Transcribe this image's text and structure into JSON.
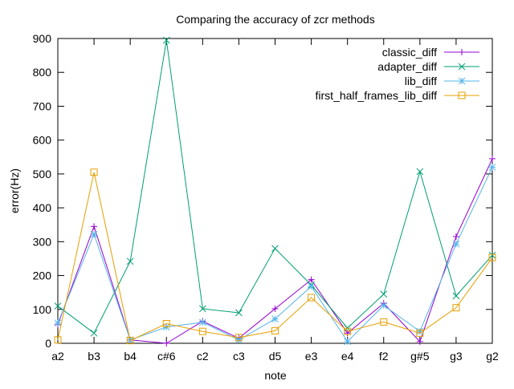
{
  "chart_data": {
    "type": "line",
    "title": "Comparing the accuracy of zcr methods",
    "xlabel": "note",
    "ylabel": "error(Hz)",
    "categories": [
      "a2",
      "b3",
      "b4",
      "c#6",
      "c2",
      "c3",
      "d5",
      "e3",
      "e4",
      "f2",
      "g#5",
      "g3",
      "g2"
    ],
    "ylim": [
      0,
      900
    ],
    "yticks": [
      0,
      100,
      200,
      300,
      400,
      500,
      600,
      700,
      800,
      900
    ],
    "grid": false,
    "legend_position": "top-right",
    "series": [
      {
        "name": "classic_diff",
        "color": "#9400d3",
        "marker": "plus",
        "values": [
          55,
          345,
          10,
          0,
          65,
          15,
          102,
          188,
          30,
          118,
          5,
          315,
          545
        ]
      },
      {
        "name": "adapter_diff",
        "color": "#009e73",
        "marker": "cross",
        "values": [
          110,
          30,
          242,
          895,
          102,
          90,
          280,
          172,
          45,
          145,
          507,
          140,
          260
        ]
      },
      {
        "name": "lib_diff",
        "color": "#56b4e9",
        "marker": "star",
        "values": [
          60,
          322,
          10,
          48,
          62,
          10,
          72,
          168,
          5,
          112,
          35,
          293,
          520
        ]
      },
      {
        "name": "first_half_frames_lib_diff",
        "color": "#e69f00",
        "marker": "square",
        "values": [
          10,
          505,
          8,
          58,
          35,
          17,
          37,
          135,
          35,
          63,
          30,
          105,
          253
        ]
      }
    ]
  }
}
